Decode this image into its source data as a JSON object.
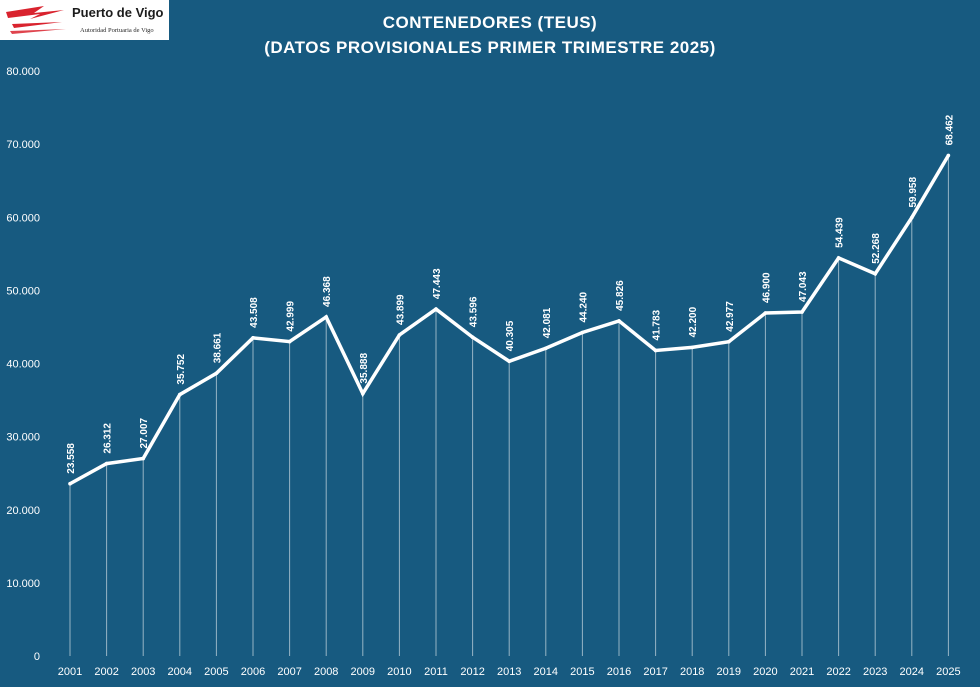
{
  "logo": {
    "name": "Puerto de Vigo",
    "subtitle": "Autoridad Portuaria de Vigo"
  },
  "chart_data": {
    "type": "line",
    "title": "CONTENEDORES (TEUS)",
    "subtitle": "(DATOS PROVISIONALES PRIMER TRIMESTRE 2025)",
    "xlabel": "",
    "ylabel": "",
    "ylim": [
      0,
      80000
    ],
    "yticks": [
      0,
      10000,
      20000,
      30000,
      40000,
      50000,
      60000,
      70000,
      80000
    ],
    "ytick_labels": [
      "0",
      "10.000",
      "20.000",
      "30.000",
      "40.000",
      "50.000",
      "60.000",
      "70.000",
      "80.000"
    ],
    "categories": [
      "2001",
      "2002",
      "2003",
      "2004",
      "2005",
      "2006",
      "2007",
      "2008",
      "2009",
      "2010",
      "2011",
      "2012",
      "2013",
      "2014",
      "2015",
      "2016",
      "2017",
      "2018",
      "2019",
      "2020",
      "2021",
      "2022",
      "2023",
      "2024",
      "2025"
    ],
    "values": [
      23558,
      26312,
      27007,
      35752,
      38661,
      43508,
      42999,
      46368,
      35888,
      43899,
      47443,
      43596,
      40305,
      42081,
      44240,
      45826,
      41783,
      42200,
      42977,
      46900,
      47043,
      54439,
      52268,
      59958,
      68462
    ],
    "value_labels": [
      "23.558",
      "26.312",
      "27.007",
      "35.752",
      "38.661",
      "43.508",
      "42.999",
      "46.368",
      "35.888",
      "43.899",
      "47.443",
      "43.596",
      "40.305",
      "42.081",
      "44.240",
      "45.826",
      "41.783",
      "42.200",
      "42.977",
      "46.900",
      "47.043",
      "54.439",
      "52.268",
      "59.958",
      "68.462"
    ],
    "grid": false,
    "legend": "none",
    "colors": {
      "background": "#175a80",
      "line": "#ffffff",
      "drop_line": "#ffffff"
    }
  }
}
